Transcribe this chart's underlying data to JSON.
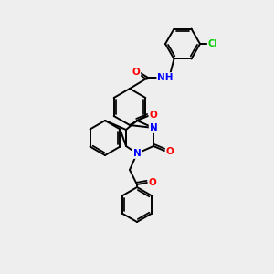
{
  "background_color": "#eeeeee",
  "bond_color": "#000000",
  "atom_colors": {
    "O": "#ff0000",
    "N": "#0000ff",
    "Cl": "#00cc00",
    "C": "#000000",
    "H": "#000000"
  },
  "lw": 1.4
}
